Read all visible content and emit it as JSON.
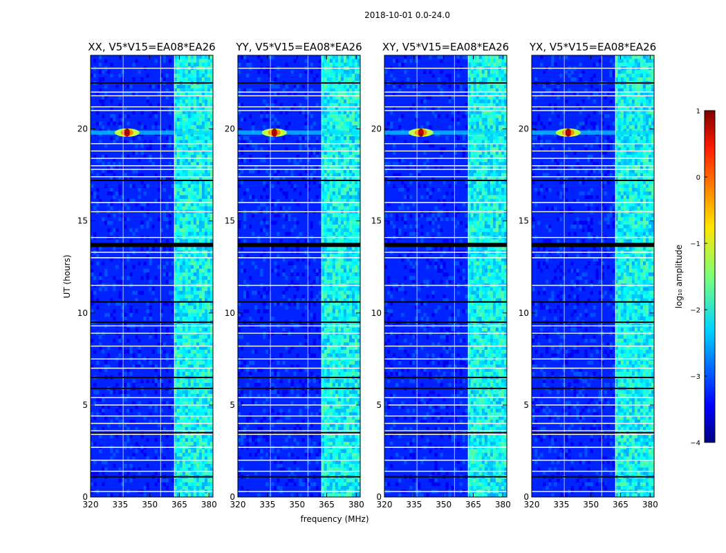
{
  "chart_data": {
    "type": "heatmap",
    "suptitle": "2018-10-01 0.0-24.0",
    "xlabel": "frequency (MHz)",
    "ylabel": "UT (hours)",
    "xlim": [
      320,
      382
    ],
    "ylim": [
      0,
      24
    ],
    "xticks": [
      320,
      335,
      350,
      365,
      380
    ],
    "yticks": [
      0,
      5,
      10,
      15,
      20
    ],
    "panels": [
      {
        "title": "XX, V5*V15=EA08*EA26"
      },
      {
        "title": "YY, V5*V15=EA08*EA26"
      },
      {
        "title": "XY, V5*V15=EA08*EA26"
      },
      {
        "title": "YX, V5*V15=EA08*EA26"
      }
    ],
    "colorbar": {
      "label": "log₁₀ amplitude",
      "range": [
        -4,
        1
      ],
      "ticks": [
        "1",
        "0",
        "−1",
        "−2",
        "−3",
        "−4"
      ],
      "colormap": "jet"
    },
    "features": {
      "rfi_band_mhz": [
        362,
        382
      ],
      "rfi_band_amplitude_log10": -2.1,
      "background_amplitude_log10": -3.2,
      "strong_source": {
        "freq_mhz": 338.5,
        "ut_hours": 19.8,
        "amplitude_log10": 0.8
      },
      "flagged_white_rows_ut": [
        0.3,
        1.4,
        2.0,
        2.7,
        3.4,
        3.6,
        4.0,
        4.4,
        5.0,
        5.4,
        5.9,
        7.0,
        7.5,
        8.2,
        8.9,
        9.3,
        11.5,
        13.0,
        13.3,
        14.1,
        15.5,
        16.0,
        17.4,
        17.8,
        18.0,
        18.4,
        18.8,
        19.2,
        21.0,
        21.2,
        21.8,
        22.0,
        22.5,
        23.3
      ],
      "flagged_black_rows_ut": [
        1.1,
        3.5,
        5.9,
        6.5,
        9.5,
        10.6,
        13.7,
        17.2,
        22.5
      ],
      "flagged_vertical_lines_mhz": [
        336.5,
        355.5,
        362.5
      ]
    }
  }
}
